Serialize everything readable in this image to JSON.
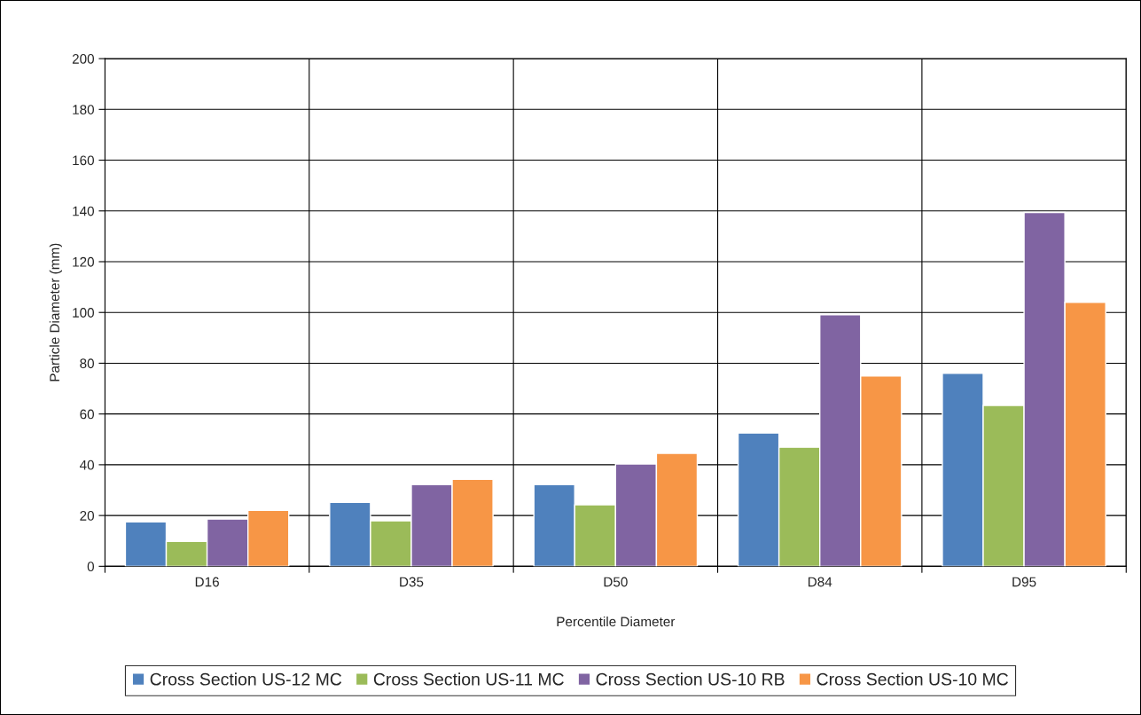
{
  "chart_data": {
    "type": "bar",
    "xlabel": "Percentile Diameter",
    "ylabel": "Particle Diameter (mm)",
    "categories": [
      "D16",
      "D35",
      "D50",
      "D84",
      "D95"
    ],
    "series": [
      {
        "name": "Cross Section US-12 MC",
        "color": "#4f81bd",
        "values": [
          17.5,
          25.2,
          32.2,
          52.5,
          76
        ]
      },
      {
        "name": "Cross Section US-11 MC",
        "color": "#9bbb59",
        "values": [
          9.8,
          17.9,
          24.2,
          46.9,
          63.4
        ]
      },
      {
        "name": "Cross Section US-10 RB",
        "color": "#8064a2",
        "values": [
          18.6,
          32.2,
          40.3,
          99.1,
          139.4
        ]
      },
      {
        "name": "Cross Section US-10 MC",
        "color": "#f79646",
        "values": [
          22,
          34.3,
          44.5,
          75,
          104
        ]
      }
    ],
    "ylim": [
      0,
      200
    ],
    "yticks": [
      0,
      20,
      40,
      60,
      80,
      100,
      120,
      140,
      160,
      180,
      200
    ],
    "grid": true,
    "legend": "bottom"
  }
}
